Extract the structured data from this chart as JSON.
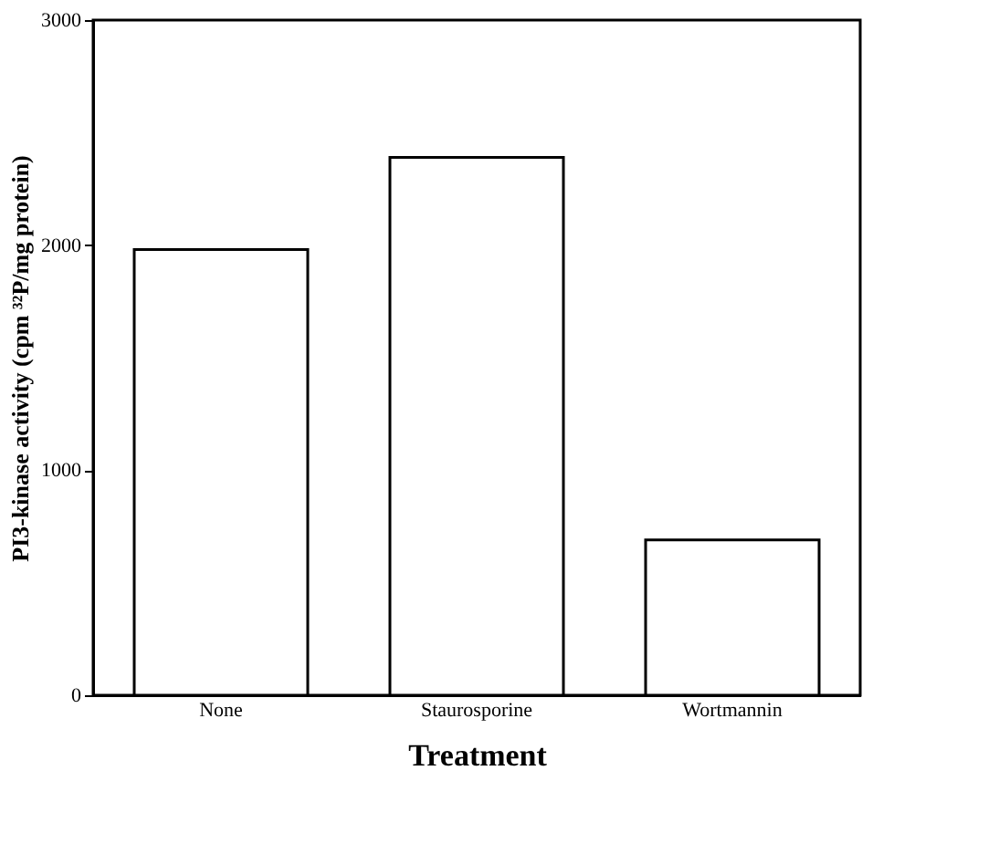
{
  "chart_data": {
    "type": "bar",
    "xlabel": "Treatment",
    "ylabel": "PI3-kinase activity (cpm ³²P/mg protein)",
    "categories": [
      "None",
      "Staurosporine",
      "Wortmannin"
    ],
    "values": [
      1980,
      2390,
      690
    ],
    "color": "#ffffff",
    "ylim": [
      0,
      3000
    ],
    "yticks": [
      0,
      1000,
      2000,
      3000
    ],
    "grid": false
  }
}
